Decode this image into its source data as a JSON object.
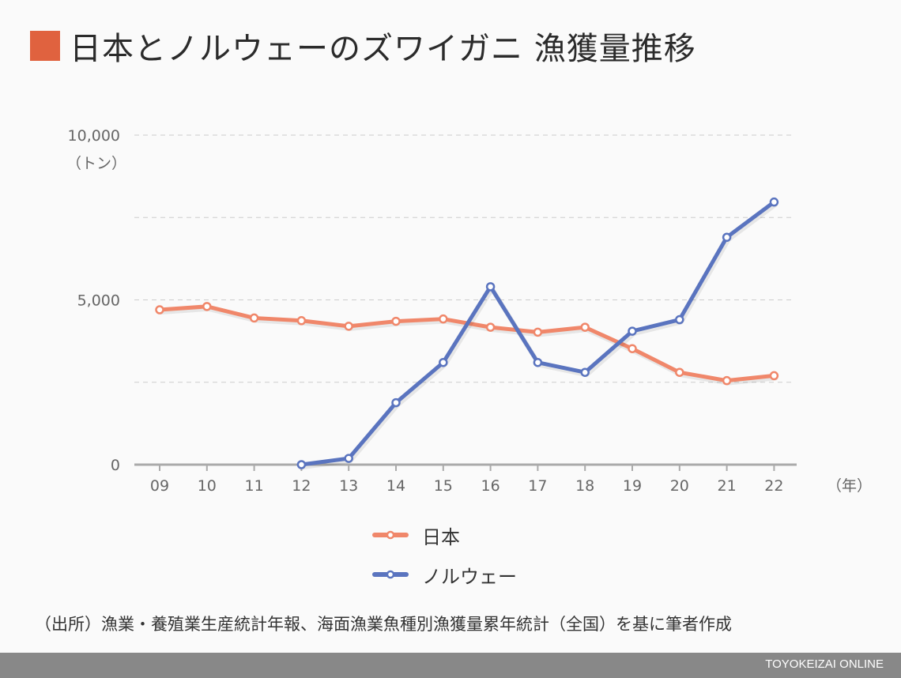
{
  "header": {
    "title": "日本とノルウェーのズワイガニ 漁獲量推移",
    "accent_color": "#e0623f"
  },
  "chart_data": {
    "type": "line",
    "x": [
      "09",
      "10",
      "11",
      "12",
      "13",
      "14",
      "15",
      "16",
      "17",
      "18",
      "19",
      "20",
      "21",
      "22"
    ],
    "x_unit": "（年）",
    "y_unit": "（トン）",
    "y_ticks": [
      "0",
      "5,000",
      "10,000"
    ],
    "ylim": [
      0,
      10000
    ],
    "grid": true,
    "legend_position": "bottom",
    "series": [
      {
        "name": "日本",
        "color": "#f0876a",
        "values": [
          4700,
          4800,
          4450,
          4370,
          4200,
          4350,
          4420,
          4170,
          4020,
          4170,
          3520,
          2800,
          2550,
          2700
        ]
      },
      {
        "name": "ノルウェー",
        "color": "#5a74bf",
        "values": [
          null,
          null,
          null,
          0,
          190,
          1880,
          3100,
          5400,
          3100,
          2800,
          4050,
          4400,
          6900,
          7970
        ]
      }
    ]
  },
  "source_note": "（出所）漁業・養殖業生産統計年報、海面漁業魚種別漁獲量累年統計（全国）を基に筆者作成",
  "footer": {
    "brand": "TOYOKEIZAI ONLINE"
  }
}
